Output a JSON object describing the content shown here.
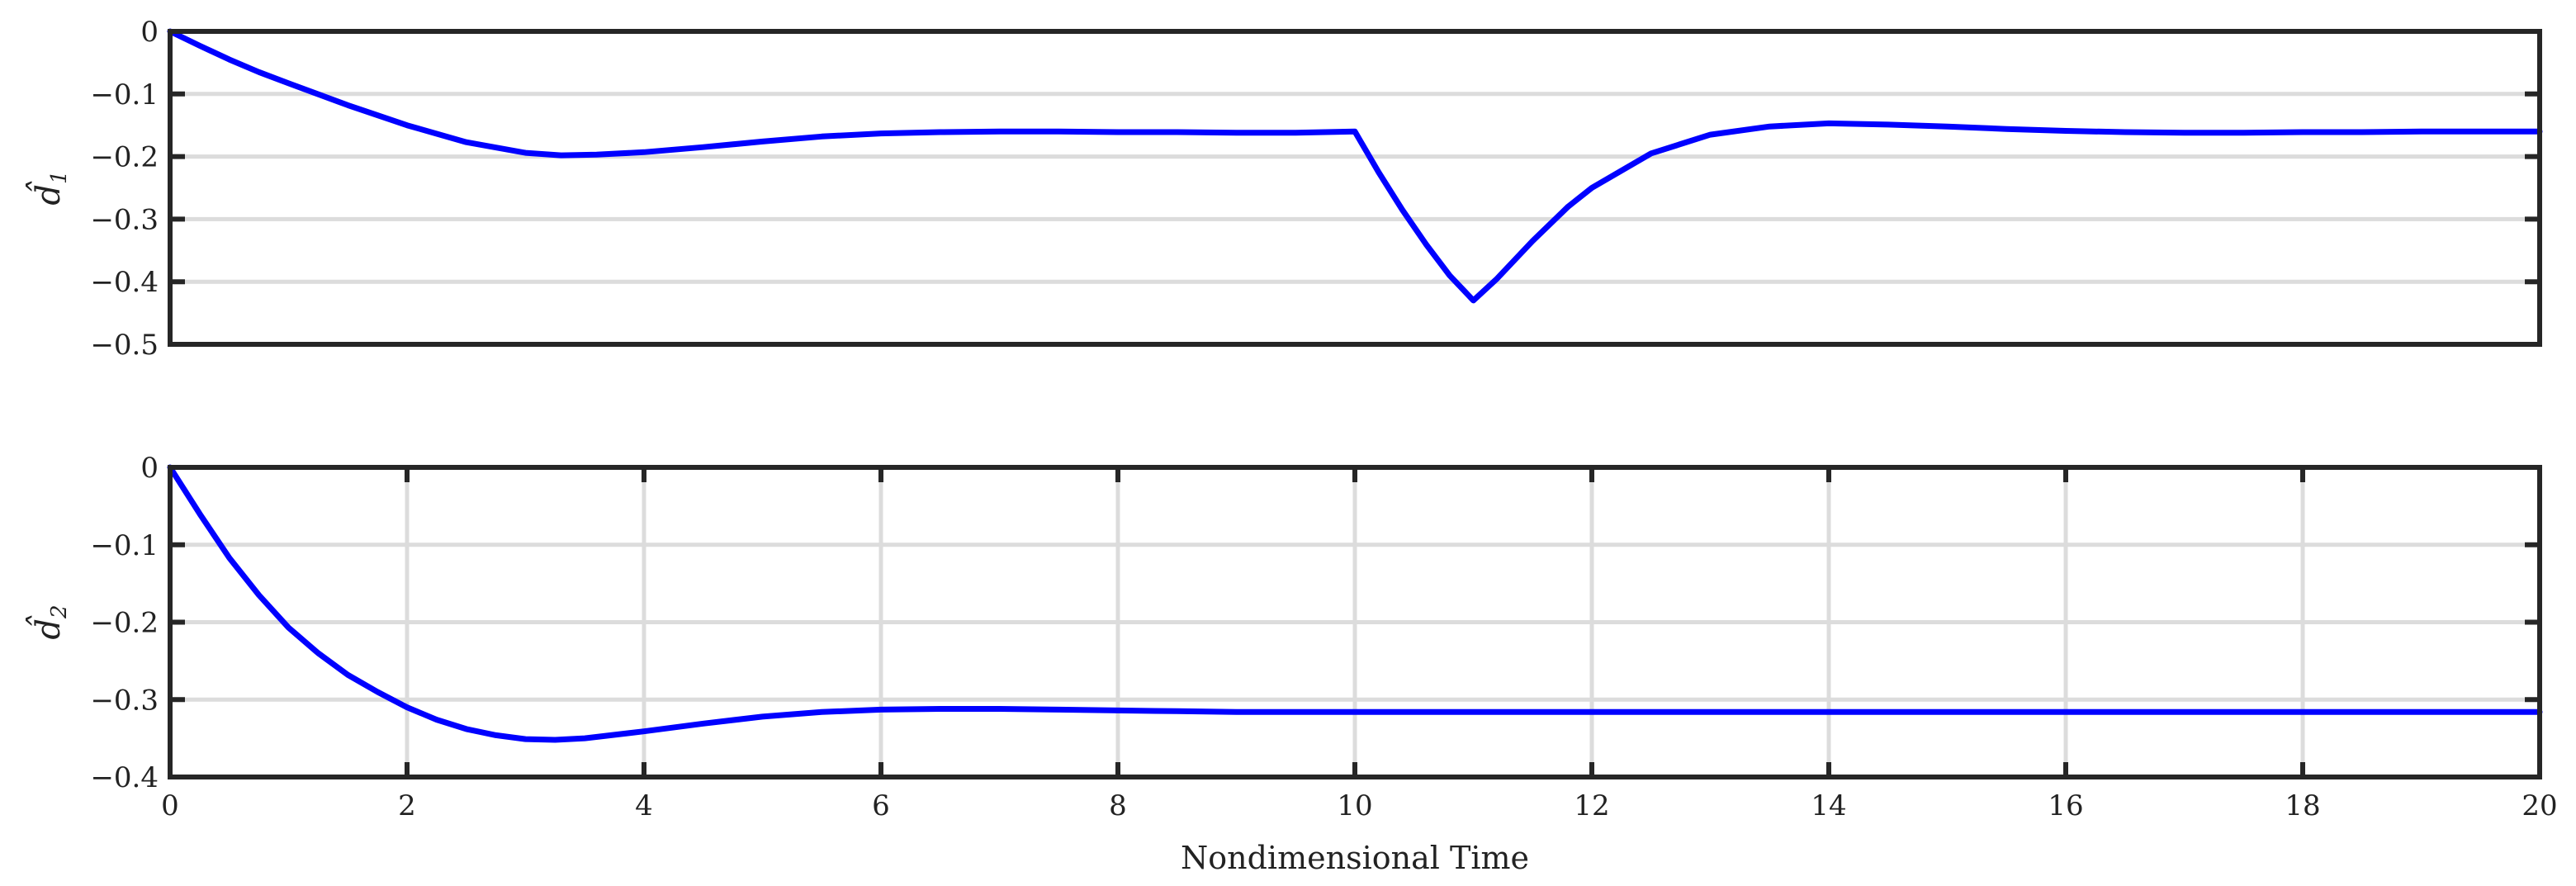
{
  "chart_data": [
    {
      "type": "line",
      "ylabel": "d̂",
      "ylabel_subscript": "1",
      "xlabel": "",
      "xlim": [
        0,
        20
      ],
      "ylim": [
        -0.5,
        0
      ],
      "yticks": [
        0,
        -0.1,
        -0.2,
        -0.3,
        -0.4,
        -0.5
      ],
      "ytick_labels": [
        "0",
        "−0.1",
        "−0.2",
        "−0.3",
        "−0.4",
        "−0.5"
      ],
      "xticks": [],
      "xtick_labels": [],
      "grid": "horizontal",
      "line_color": "#0000ff",
      "series": [
        {
          "x": [
            0,
            0.25,
            0.5,
            0.75,
            1,
            1.5,
            2,
            2.5,
            3,
            3.3,
            3.6,
            4,
            4.5,
            5,
            5.5,
            6,
            6.5,
            7,
            7.5,
            8,
            8.5,
            9,
            9.5,
            10,
            10.2,
            10.4,
            10.6,
            10.8,
            11,
            11.2,
            11.5,
            11.8,
            12,
            12.5,
            13,
            13.5,
            14,
            14.5,
            15,
            15.5,
            16,
            16.5,
            17,
            17.5,
            18,
            18.5,
            19,
            19.5,
            20
          ],
          "y": [
            0,
            -0.023,
            -0.045,
            -0.065,
            -0.083,
            -0.118,
            -0.15,
            -0.177,
            -0.194,
            -0.198,
            -0.197,
            -0.193,
            -0.185,
            -0.176,
            -0.168,
            -0.163,
            -0.161,
            -0.16,
            -0.16,
            -0.161,
            -0.161,
            -0.162,
            -0.162,
            -0.16,
            -0.225,
            -0.285,
            -0.34,
            -0.39,
            -0.43,
            -0.395,
            -0.335,
            -0.28,
            -0.25,
            -0.195,
            -0.165,
            -0.152,
            -0.147,
            -0.149,
            -0.152,
            -0.156,
            -0.159,
            -0.161,
            -0.162,
            -0.162,
            -0.161,
            -0.161,
            -0.16,
            -0.16,
            -0.16
          ]
        }
      ]
    },
    {
      "type": "line",
      "ylabel": "d̂",
      "ylabel_subscript": "2",
      "xlabel": "Nondimensional Time",
      "xlim": [
        0,
        20
      ],
      "ylim": [
        -0.4,
        0
      ],
      "yticks": [
        0,
        -0.1,
        -0.2,
        -0.3,
        -0.4
      ],
      "ytick_labels": [
        "0",
        "−0.1",
        "−0.2",
        "−0.3",
        "−0.4"
      ],
      "xticks": [
        0,
        2,
        4,
        6,
        8,
        10,
        12,
        14,
        16,
        18,
        20
      ],
      "xtick_labels": [
        "0",
        "2",
        "4",
        "6",
        "8",
        "10",
        "12",
        "14",
        "16",
        "18",
        "20"
      ],
      "grid": "both",
      "line_color": "#0000ff",
      "series": [
        {
          "x": [
            0,
            0.25,
            0.5,
            0.75,
            1,
            1.25,
            1.5,
            1.75,
            2,
            2.25,
            2.5,
            2.75,
            3,
            3.25,
            3.5,
            4,
            4.5,
            5,
            5.5,
            6,
            6.5,
            7,
            7.5,
            8,
            8.5,
            9,
            10,
            11,
            12,
            13,
            14,
            15,
            16,
            17,
            18,
            19,
            20
          ],
          "y": [
            0,
            -0.06,
            -0.117,
            -0.165,
            -0.207,
            -0.24,
            -0.268,
            -0.29,
            -0.31,
            -0.326,
            -0.338,
            -0.346,
            -0.351,
            -0.352,
            -0.35,
            -0.341,
            -0.331,
            -0.322,
            -0.316,
            -0.313,
            -0.312,
            -0.312,
            -0.313,
            -0.314,
            -0.315,
            -0.316,
            -0.316,
            -0.316,
            -0.316,
            -0.316,
            -0.316,
            -0.316,
            -0.316,
            -0.316,
            -0.316,
            -0.316,
            -0.316
          ]
        }
      ]
    }
  ]
}
